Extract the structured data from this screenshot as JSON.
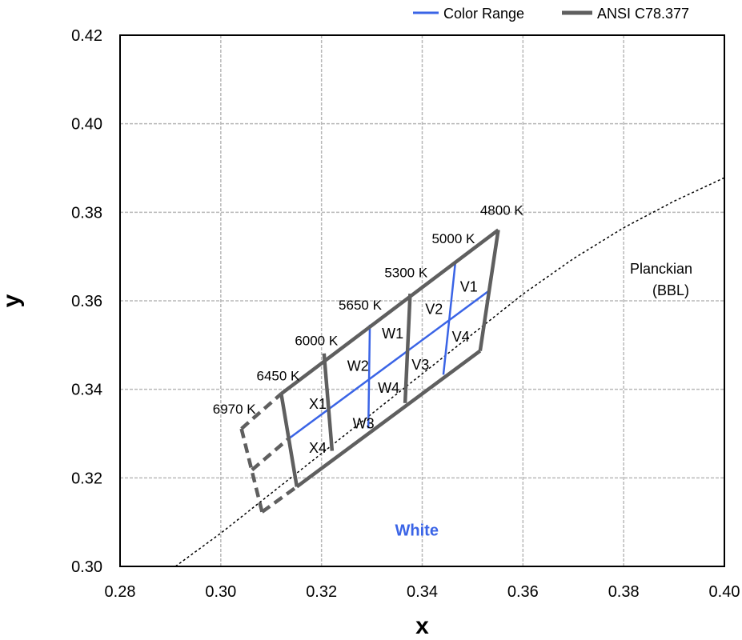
{
  "chart_data": {
    "type": "line",
    "xlabel": "x",
    "ylabel": "y",
    "xlim": [
      0.28,
      0.4
    ],
    "ylim": [
      0.3,
      0.42
    ],
    "x_ticks": [
      "0.28",
      "0.30",
      "0.32",
      "0.34",
      "0.36",
      "0.38",
      "0.40"
    ],
    "y_ticks": [
      "0.30",
      "0.32",
      "0.34",
      "0.36",
      "0.38",
      "0.40",
      "0.42"
    ],
    "grid": true,
    "legend": {
      "placement": "top-right",
      "entries": [
        {
          "label": "Color Range",
          "color": "#3a64e6"
        },
        {
          "label": "ANSI C78.377",
          "color": "#5f5f5f"
        }
      ]
    },
    "planckian_locus": {
      "label_line1": "Planckian",
      "label_line2": "(BBL)",
      "style": "dotted",
      "color": "#000000",
      "points": [
        [
          0.291,
          0.3
        ],
        [
          0.3,
          0.3075
        ],
        [
          0.31,
          0.3165
        ],
        [
          0.32,
          0.3255
        ],
        [
          0.33,
          0.3345
        ],
        [
          0.34,
          0.3435
        ],
        [
          0.35,
          0.3525
        ],
        [
          0.36,
          0.3615
        ],
        [
          0.37,
          0.3695
        ],
        [
          0.38,
          0.3765
        ],
        [
          0.39,
          0.3825
        ],
        [
          0.4,
          0.3878
        ]
      ]
    },
    "ansi_quadrangles": {
      "color": "#5f5f5f",
      "cct_lines": [
        {
          "label": "4800 K",
          "top": [
            0.3551,
            0.376
          ],
          "bottom": [
            0.3515,
            0.3487
          ],
          "style": "solid"
        },
        {
          "label": "5000 K",
          "top": null,
          "bottom": null,
          "style": "none"
        },
        {
          "label": "5300 K",
          "top": [
            0.3376,
            0.3616
          ],
          "bottom": [
            0.3366,
            0.3369
          ],
          "style": "solid"
        },
        {
          "label": "5650 K",
          "top": null,
          "bottom": null,
          "style": "none"
        },
        {
          "label": "6000 K",
          "top": [
            0.3205,
            0.3481
          ],
          "bottom": [
            0.3221,
            0.3261
          ],
          "style": "solid"
        },
        {
          "label": "6450 K",
          "top": [
            0.312,
            0.339
          ],
          "bottom": [
            0.3151,
            0.318
          ],
          "style": "solid"
        },
        {
          "label": "6970 K",
          "top": [
            0.3041,
            0.3311
          ],
          "bottom": [
            0.3082,
            0.3123
          ],
          "style": "dashed"
        }
      ],
      "top_boundary": [
        [
          0.312,
          0.339
        ],
        [
          0.3551,
          0.376
        ]
      ],
      "bottom_boundary": [
        [
          0.3151,
          0.318
        ],
        [
          0.3515,
          0.3487
        ]
      ],
      "dashed_extension": {
        "top": [
          [
            0.3041,
            0.3311
          ],
          [
            0.312,
            0.339
          ]
        ],
        "middle": [
          [
            0.3062,
            0.3218
          ],
          [
            0.3133,
            0.3287
          ]
        ],
        "bottom": [
          [
            0.3082,
            0.3123
          ],
          [
            0.3151,
            0.318
          ]
        ]
      },
      "center_line": [
        [
          0.3133,
          0.3287
        ],
        [
          0.3533,
          0.3623
        ]
      ],
      "intermediate_cct_lines": [
        {
          "top": [
            0.3466,
            0.3689
          ],
          "bottom": [
            0.3442,
            0.3433
          ],
          "color": "#3a64e6"
        },
        {
          "top": [
            0.3296,
            0.3546
          ],
          "bottom": [
            0.3293,
            0.3312
          ],
          "color": "#3a64e6"
        }
      ]
    },
    "color_range_color": "#3a64e6",
    "bins": [
      {
        "label": "V1",
        "x": 0.3475,
        "y": 0.3621
      },
      {
        "label": "V2",
        "x": 0.3406,
        "y": 0.357
      },
      {
        "label": "V4",
        "x": 0.3459,
        "y": 0.3508
      },
      {
        "label": "V3",
        "x": 0.3379,
        "y": 0.3445
      },
      {
        "label": "W1",
        "x": 0.332,
        "y": 0.3515
      },
      {
        "label": "W2",
        "x": 0.3251,
        "y": 0.3442
      },
      {
        "label": "W4",
        "x": 0.3312,
        "y": 0.3392
      },
      {
        "label": "W3",
        "x": 0.3262,
        "y": 0.3312
      },
      {
        "label": "X1",
        "x": 0.3175,
        "y": 0.3356
      },
      {
        "label": "X4",
        "x": 0.3175,
        "y": 0.3257
      }
    ],
    "cct_labels": [
      {
        "label": "4800 K",
        "x": 0.3515,
        "y": 0.3794
      },
      {
        "label": "5000 K",
        "x": 0.3419,
        "y": 0.373
      },
      {
        "label": "5300 K",
        "x": 0.3325,
        "y": 0.3653
      },
      {
        "label": "5650 K",
        "x": 0.3234,
        "y": 0.358
      },
      {
        "label": "6000 K",
        "x": 0.3147,
        "y": 0.35
      },
      {
        "label": "6450 K",
        "x": 0.3071,
        "y": 0.342
      },
      {
        "label": "6970 K",
        "x": 0.2984,
        "y": 0.3345
      }
    ],
    "annotations": [
      {
        "text": "White",
        "x": 0.3346,
        "y": 0.307,
        "color": "#3a64e6"
      }
    ]
  }
}
